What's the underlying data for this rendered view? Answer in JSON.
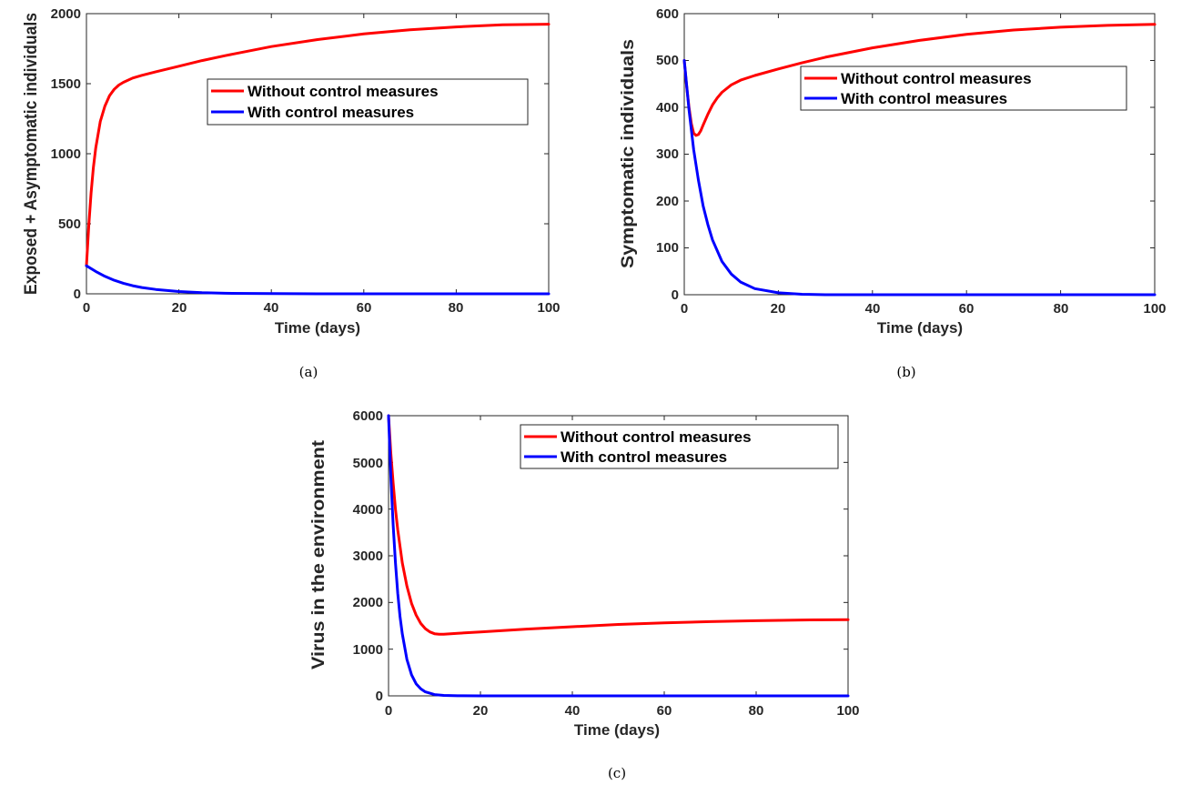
{
  "chart_data": [
    {
      "type": "line",
      "caption": "(a)",
      "xlabel": "Time (days)",
      "ylabel": "Exposed + Asymptomatic individuals",
      "xlim": [
        0,
        100
      ],
      "ylim": [
        0,
        2000
      ],
      "xticks": [
        "0",
        "20",
        "40",
        "60",
        "80",
        "100"
      ],
      "yticks": [
        "0",
        "500",
        "1000",
        "1500",
        "2000"
      ],
      "legend_position": "top-right",
      "series": [
        {
          "name": "Without control measures",
          "color": "#ff0000",
          "x": [
            0,
            0.5,
            1,
            1.5,
            2,
            3,
            4,
            5,
            6,
            7,
            8,
            10,
            12,
            15,
            20,
            25,
            30,
            40,
            50,
            60,
            70,
            80,
            90,
            100
          ],
          "y": [
            200,
            480,
            720,
            900,
            1040,
            1230,
            1340,
            1415,
            1460,
            1490,
            1510,
            1540,
            1560,
            1585,
            1625,
            1665,
            1700,
            1765,
            1815,
            1855,
            1885,
            1905,
            1920,
            1925
          ]
        },
        {
          "name": "With control measures",
          "color": "#0000ff",
          "x": [
            0,
            2,
            4,
            6,
            8,
            10,
            12,
            15,
            20,
            25,
            30,
            40,
            50,
            60,
            70,
            80,
            90,
            100
          ],
          "y": [
            200,
            160,
            125,
            97,
            75,
            58,
            45,
            31,
            16,
            8,
            4,
            1,
            0,
            0,
            0,
            0,
            0,
            0
          ]
        }
      ]
    },
    {
      "type": "line",
      "caption": "(b)",
      "xlabel": "Time (days)",
      "ylabel": "Symptomatic individuals",
      "xlim": [
        0,
        100
      ],
      "ylim": [
        0,
        600
      ],
      "xticks": [
        "0",
        "20",
        "40",
        "60",
        "80",
        "100"
      ],
      "yticks": [
        "0",
        "100",
        "200",
        "300",
        "400",
        "500",
        "600"
      ],
      "legend_position": "top-right",
      "series": [
        {
          "name": "Without control measures",
          "color": "#ff0000",
          "x": [
            0,
            0.5,
            1,
            1.5,
            2,
            2.5,
            3,
            3.5,
            4,
            5,
            6,
            7,
            8,
            10,
            12,
            15,
            20,
            25,
            30,
            40,
            50,
            60,
            70,
            80,
            90,
            100
          ],
          "y": [
            500,
            445,
            400,
            365,
            345,
            340,
            342,
            350,
            362,
            385,
            405,
            420,
            432,
            448,
            458,
            468,
            482,
            495,
            507,
            527,
            543,
            556,
            565,
            571,
            575,
            577
          ]
        },
        {
          "name": "With control measures",
          "color": "#0000ff",
          "x": [
            0,
            1,
            2,
            3,
            4,
            5,
            6,
            8,
            10,
            12,
            15,
            20,
            25,
            30,
            40,
            50,
            60,
            70,
            80,
            90,
            100
          ],
          "y": [
            500,
            395,
            310,
            245,
            190,
            150,
            117,
            71,
            44,
            27,
            13,
            4,
            1,
            0,
            0,
            0,
            0,
            0,
            0,
            0,
            0
          ]
        }
      ]
    },
    {
      "type": "line",
      "caption": "(c)",
      "xlabel": "Time (days)",
      "ylabel": "Virus in the environment",
      "xlim": [
        0,
        100
      ],
      "ylim": [
        0,
        6000
      ],
      "xticks": [
        "0",
        "20",
        "40",
        "60",
        "80",
        "100"
      ],
      "yticks": [
        "0",
        "1000",
        "2000",
        "3000",
        "4000",
        "5000",
        "6000"
      ],
      "legend_position": "top-right",
      "series": [
        {
          "name": "Without control measures",
          "color": "#ff0000",
          "x": [
            0,
            0.5,
            1,
            1.5,
            2,
            3,
            4,
            5,
            6,
            7,
            8,
            9,
            10,
            11,
            12,
            15,
            20,
            30,
            40,
            50,
            60,
            70,
            80,
            90,
            100
          ],
          "y": [
            6000,
            5200,
            4550,
            4000,
            3560,
            2850,
            2350,
            1980,
            1730,
            1550,
            1440,
            1370,
            1330,
            1320,
            1320,
            1340,
            1370,
            1430,
            1480,
            1530,
            1565,
            1590,
            1610,
            1625,
            1630
          ]
        },
        {
          "name": "With control measures",
          "color": "#0000ff",
          "x": [
            0,
            0.5,
            1,
            1.5,
            2,
            2.5,
            3,
            4,
            5,
            6,
            7,
            8,
            10,
            12,
            15,
            20,
            30,
            40,
            50,
            60,
            70,
            80,
            90,
            100
          ],
          "y": [
            6000,
            4700,
            3650,
            2850,
            2200,
            1700,
            1330,
            780,
            450,
            260,
            150,
            85,
            28,
            9,
            2,
            0,
            0,
            0,
            0,
            0,
            0,
            0,
            0,
            0
          ]
        }
      ]
    }
  ]
}
